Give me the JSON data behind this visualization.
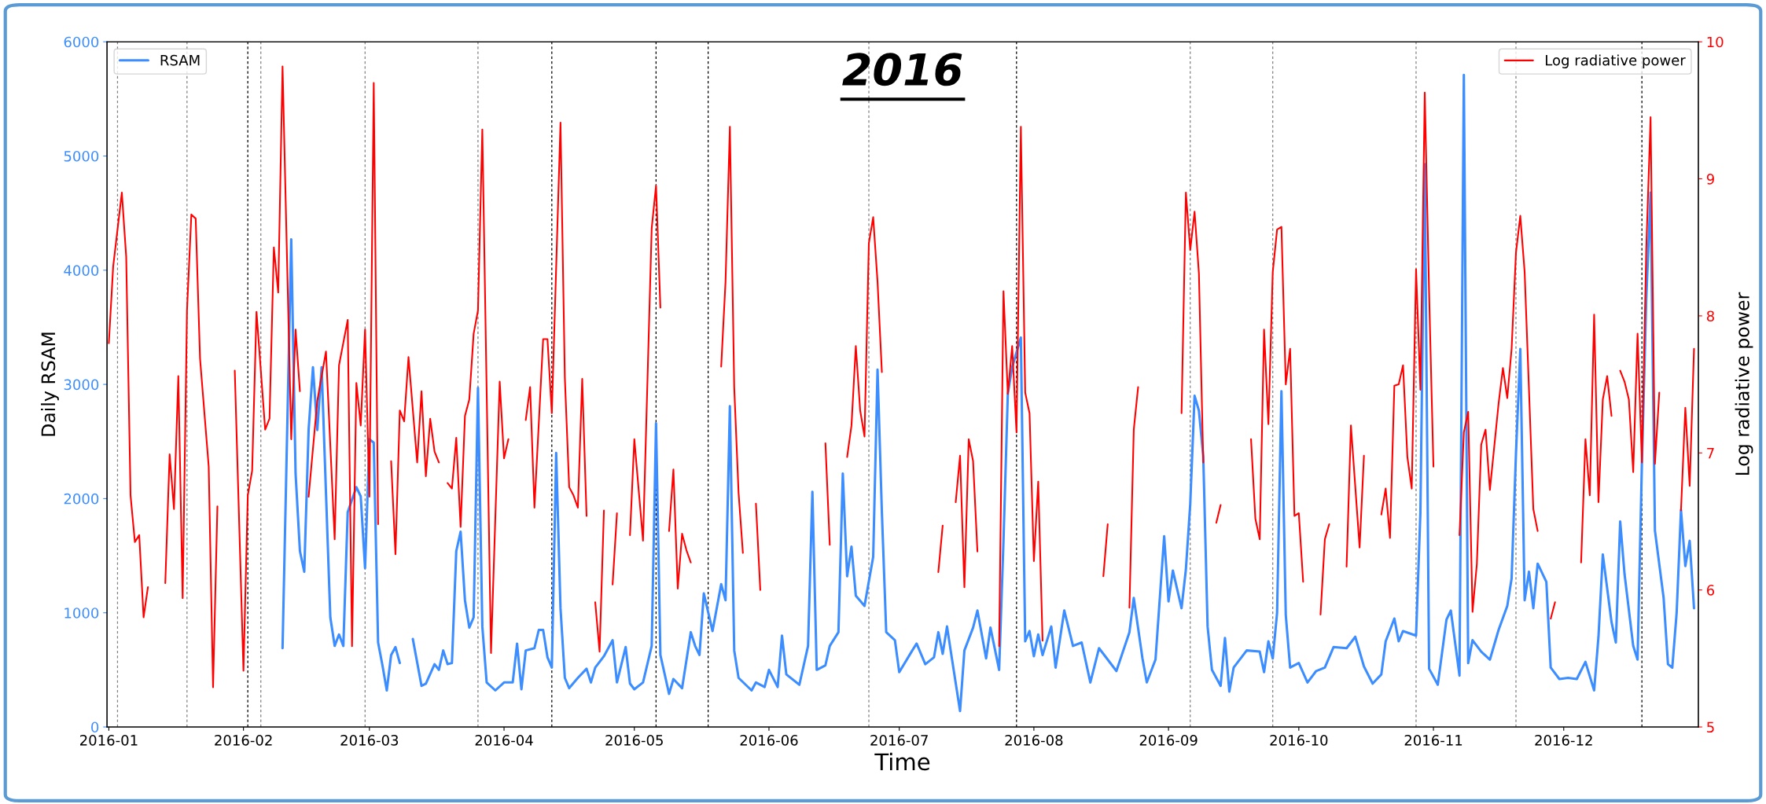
{
  "chart_data": {
    "type": "line",
    "title": "2016",
    "xlabel": "Time",
    "ylabel": "Daily RSAM",
    "y2label": "Log radiative power",
    "xlim": [
      "2015-12-31T14:00",
      "2017-01-01"
    ],
    "xticks": [
      {
        "value": "2016-01-01",
        "label": "2016-01"
      },
      {
        "value": "2016-02-01",
        "label": "2016-02"
      },
      {
        "value": "2016-03-01",
        "label": "2016-03"
      },
      {
        "value": "2016-04-01",
        "label": "2016-04"
      },
      {
        "value": "2016-05-01",
        "label": "2016-05"
      },
      {
        "value": "2016-06-01",
        "label": "2016-06"
      },
      {
        "value": "2016-07-01",
        "label": "2016-07"
      },
      {
        "value": "2016-08-01",
        "label": "2016-08"
      },
      {
        "value": "2016-09-01",
        "label": "2016-09"
      },
      {
        "value": "2016-10-01",
        "label": "2016-10"
      },
      {
        "value": "2016-11-01",
        "label": "2016-11"
      },
      {
        "value": "2016-12-01",
        "label": "2016-12"
      }
    ],
    "ylim": [
      0,
      6000
    ],
    "yticks": [
      0,
      1000,
      2000,
      3000,
      4000,
      5000,
      6000
    ],
    "y2lim": [
      5,
      10
    ],
    "y2ticks": [
      5,
      6,
      7,
      8,
      9,
      10
    ],
    "legend": [
      "top left",
      "top right"
    ],
    "grid": false,
    "line_style": "solid",
    "marker": "none",
    "series": [
      {
        "name": "RSAM",
        "color": "#3c8dff",
        "axis": "y",
        "x": [
          "2016-02-10",
          "2016-02-12",
          "2016-02-13",
          "2016-02-14",
          "2016-02-15",
          "2016-02-16",
          "2016-02-17",
          "2016-02-18",
          "2016-02-19",
          "2016-02-20",
          "2016-02-21",
          "2016-02-22",
          "2016-02-23",
          "2016-02-24",
          "2016-02-25",
          "2016-02-27",
          "2016-02-28",
          "2016-02-29",
          "2016-03-01",
          "2016-03-02",
          "2016-03-03",
          "2016-03-04",
          "2016-03-05",
          "2016-03-06",
          "2016-03-07",
          "2016-03-08",
          "2016-03-09",
          "2016-03-11",
          "2016-03-13",
          "2016-03-14",
          "2016-03-16",
          "2016-03-17",
          "2016-03-18",
          "2016-03-19",
          "2016-03-20",
          "2016-03-21",
          "2016-03-22",
          "2016-03-23",
          "2016-03-24",
          "2016-03-25",
          "2016-03-26",
          "2016-03-27",
          "2016-03-28",
          "2016-03-30",
          "2016-04-01",
          "2016-04-03",
          "2016-04-04",
          "2016-04-05",
          "2016-04-06",
          "2016-04-08",
          "2016-04-09",
          "2016-04-10",
          "2016-04-11",
          "2016-04-12",
          "2016-04-13",
          "2016-04-14",
          "2016-04-15",
          "2016-04-16",
          "2016-04-18",
          "2016-04-20",
          "2016-04-21",
          "2016-04-22",
          "2016-04-24",
          "2016-04-26",
          "2016-04-27",
          "2016-04-29",
          "2016-04-30",
          "2016-05-01",
          "2016-05-03",
          "2016-05-05",
          "2016-05-06",
          "2016-05-07",
          "2016-05-09",
          "2016-05-10",
          "2016-05-12",
          "2016-05-14",
          "2016-05-15",
          "2016-05-16",
          "2016-05-17",
          "2016-05-19",
          "2016-05-21",
          "2016-05-22",
          "2016-05-23",
          "2016-05-24",
          "2016-05-25",
          "2016-05-28",
          "2016-05-29",
          "2016-05-31",
          "2016-06-01",
          "2016-06-03",
          "2016-06-04",
          "2016-06-05",
          "2016-06-08",
          "2016-06-10",
          "2016-06-11",
          "2016-06-12",
          "2016-06-14",
          "2016-06-15",
          "2016-06-17",
          "2016-06-18",
          "2016-06-19",
          "2016-06-20",
          "2016-06-21",
          "2016-06-23",
          "2016-06-25",
          "2016-06-26",
          "2016-06-27",
          "2016-06-28",
          "2016-06-30",
          "2016-07-01",
          "2016-07-04",
          "2016-07-05",
          "2016-07-07",
          "2016-07-09",
          "2016-07-10",
          "2016-07-11",
          "2016-07-12",
          "2016-07-13",
          "2016-07-15",
          "2016-07-16",
          "2016-07-18",
          "2016-07-19",
          "2016-07-21",
          "2016-07-22",
          "2016-07-24",
          "2016-07-25",
          "2016-07-26",
          "2016-07-27",
          "2016-07-29",
          "2016-07-30",
          "2016-07-31",
          "2016-08-01",
          "2016-08-02",
          "2016-08-03",
          "2016-08-05",
          "2016-08-06",
          "2016-08-08",
          "2016-08-10",
          "2016-08-12",
          "2016-08-14",
          "2016-08-16",
          "2016-08-20",
          "2016-08-23",
          "2016-08-24",
          "2016-08-26",
          "2016-08-27",
          "2016-08-29",
          "2016-08-31",
          "2016-09-01",
          "2016-09-02",
          "2016-09-04",
          "2016-09-05",
          "2016-09-06",
          "2016-09-07",
          "2016-09-08",
          "2016-09-09",
          "2016-09-10",
          "2016-09-11",
          "2016-09-13",
          "2016-09-14",
          "2016-09-15",
          "2016-09-16",
          "2016-09-19",
          "2016-09-22",
          "2016-09-23",
          "2016-09-24",
          "2016-09-25",
          "2016-09-26",
          "2016-09-27",
          "2016-09-28",
          "2016-09-29",
          "2016-10-01",
          "2016-10-03",
          "2016-10-05",
          "2016-10-07",
          "2016-10-09",
          "2016-10-12",
          "2016-10-14",
          "2016-10-16",
          "2016-10-18",
          "2016-10-20",
          "2016-10-21",
          "2016-10-23",
          "2016-10-24",
          "2016-10-25",
          "2016-10-28",
          "2016-10-29",
          "2016-10-30",
          "2016-10-31",
          "2016-11-02",
          "2016-11-04",
          "2016-11-05",
          "2016-11-07",
          "2016-11-08",
          "2016-11-09",
          "2016-11-10",
          "2016-11-12",
          "2016-11-14",
          "2016-11-16",
          "2016-11-18",
          "2016-11-19",
          "2016-11-20",
          "2016-11-21",
          "2016-11-22",
          "2016-11-23",
          "2016-11-24",
          "2016-11-25",
          "2016-11-27",
          "2016-11-28",
          "2016-11-30",
          "2016-12-02",
          "2016-12-04",
          "2016-12-06",
          "2016-12-08",
          "2016-12-09",
          "2016-12-10",
          "2016-12-12",
          "2016-12-13",
          "2016-12-14",
          "2016-12-15",
          "2016-12-17",
          "2016-12-18",
          "2016-12-19",
          "2016-12-20",
          "2016-12-21",
          "2016-12-22",
          "2016-12-24",
          "2016-12-25",
          "2016-12-26",
          "2016-12-27",
          "2016-12-28",
          "2016-12-29",
          "2016-12-30",
          "2016-12-31"
        ],
        "values": [
          690,
          4270,
          2220,
          1540,
          1360,
          2600,
          3150,
          2600,
          3150,
          2050,
          960,
          710,
          810,
          710,
          1880,
          2100,
          2020,
          1390,
          2520,
          2490,
          740,
          540,
          320,
          630,
          700,
          560,
          null,
          770,
          360,
          380,
          550,
          500,
          670,
          550,
          560,
          1540,
          1710,
          1110,
          870,
          960,
          2970,
          880,
          390,
          320,
          390,
          390,
          730,
          330,
          670,
          690,
          850,
          850,
          610,
          520,
          2400,
          1040,
          430,
          340,
          430,
          510,
          390,
          520,
          620,
          760,
          390,
          700,
          380,
          330,
          390,
          710,
          2660,
          630,
          290,
          420,
          340,
          830,
          710,
          630,
          1170,
          840,
          1250,
          1110,
          2810,
          670,
          430,
          320,
          390,
          350,
          500,
          350,
          800,
          460,
          370,
          710,
          2060,
          500,
          540,
          710,
          830,
          2220,
          1320,
          1580,
          1150,
          1060,
          1490,
          3130,
          1880,
          830,
          760,
          480,
          670,
          730,
          550,
          610,
          830,
          640,
          880,
          630,
          140,
          670,
          870,
          1020,
          600,
          870,
          500,
          1630,
          2920,
          3150,
          3410,
          750,
          840,
          620,
          810,
          630,
          880,
          520,
          1020,
          710,
          740,
          390,
          690,
          490,
          830,
          1130,
          600,
          390,
          590,
          1670,
          1100,
          1370,
          1040,
          1380,
          1950,
          2900,
          2770,
          2370,
          880,
          500,
          360,
          780,
          310,
          520,
          670,
          660,
          480,
          750,
          600,
          1000,
          2940,
          980,
          520,
          560,
          390,
          490,
          520,
          700,
          690,
          790,
          530,
          380,
          460,
          750,
          950,
          750,
          840,
          800,
          1880,
          4930,
          510,
          370,
          940,
          1020,
          450,
          5710,
          560,
          760,
          660,
          590,
          850,
          1060,
          1300,
          2390,
          3310,
          1110,
          1360,
          1040,
          1430,
          1270,
          520,
          420,
          430,
          420,
          570,
          320,
          790,
          1510,
          920,
          740,
          1800,
          1340,
          710,
          590,
          2310,
          3740,
          4680,
          1720,
          1130,
          550,
          520,
          1000,
          1900,
          1410,
          1630,
          1040
        ]
      },
      {
        "name": "Log radiative power",
        "color": "#ff0000",
        "axis": "y2",
        "x": [
          "2016-01-01",
          "2016-01-02",
          "2016-01-04",
          "2016-01-05",
          "2016-01-06",
          "2016-01-07",
          "2016-01-08",
          "2016-01-09",
          "2016-01-10",
          "2016-01-11",
          "2016-01-14",
          "2016-01-15",
          "2016-01-16",
          "2016-01-17",
          "2016-01-18",
          "2016-01-19",
          "2016-01-20",
          "2016-01-21",
          "2016-01-22",
          "2016-01-24",
          "2016-01-25",
          "2016-01-26",
          "2016-01-28",
          "2016-01-30",
          "2016-02-01",
          "2016-02-02",
          "2016-02-03",
          "2016-02-04",
          "2016-02-06",
          "2016-02-07",
          "2016-02-08",
          "2016-02-09",
          "2016-02-10",
          "2016-02-12",
          "2016-02-13",
          "2016-02-14",
          "2016-02-15",
          "2016-02-16",
          "2016-02-18",
          "2016-02-20",
          "2016-02-22",
          "2016-02-23",
          "2016-02-25",
          "2016-02-26",
          "2016-02-27",
          "2016-02-28",
          "2016-02-29",
          "2016-03-01",
          "2016-03-02",
          "2016-03-03",
          "2016-03-04",
          "2016-03-06",
          "2016-03-07",
          "2016-03-08",
          "2016-03-09",
          "2016-03-10",
          "2016-03-12",
          "2016-03-13",
          "2016-03-14",
          "2016-03-15",
          "2016-03-16",
          "2016-03-17",
          "2016-03-18",
          "2016-03-19",
          "2016-03-20",
          "2016-03-21",
          "2016-03-22",
          "2016-03-23",
          "2016-03-24",
          "2016-03-25",
          "2016-03-26",
          "2016-03-27",
          "2016-03-29",
          "2016-03-31",
          "2016-04-01",
          "2016-04-02",
          "2016-04-04",
          "2016-04-06",
          "2016-04-07",
          "2016-04-08",
          "2016-04-10",
          "2016-04-11",
          "2016-04-12",
          "2016-04-14",
          "2016-04-15",
          "2016-04-16",
          "2016-04-17",
          "2016-04-18",
          "2016-04-19",
          "2016-04-20",
          "2016-04-21",
          "2016-04-22",
          "2016-04-23",
          "2016-04-24",
          "2016-04-25",
          "2016-04-26",
          "2016-04-27",
          "2016-04-28",
          "2016-04-30",
          "2016-05-01",
          "2016-05-03",
          "2016-05-05",
          "2016-05-06",
          "2016-05-07",
          "2016-05-08",
          "2016-05-09",
          "2016-05-10",
          "2016-05-11",
          "2016-05-12",
          "2016-05-13",
          "2016-05-14",
          "2016-05-17",
          "2016-05-21",
          "2016-05-22",
          "2016-05-23",
          "2016-05-24",
          "2016-05-25",
          "2016-05-26",
          "2016-05-27",
          "2016-05-29",
          "2016-05-30",
          "2016-06-05",
          "2016-06-14",
          "2016-06-15",
          "2016-06-17",
          "2016-06-19",
          "2016-06-20",
          "2016-06-21",
          "2016-06-22",
          "2016-06-23",
          "2016-06-24",
          "2016-06-25",
          "2016-06-26",
          "2016-06-27",
          "2016-07-03",
          "2016-07-10",
          "2016-07-11",
          "2016-07-12",
          "2016-07-14",
          "2016-07-15",
          "2016-07-16",
          "2016-07-17",
          "2016-07-18",
          "2016-07-19",
          "2016-07-21",
          "2016-07-24",
          "2016-07-25",
          "2016-07-26",
          "2016-07-27",
          "2016-07-28",
          "2016-07-29",
          "2016-07-30",
          "2016-07-31",
          "2016-08-01",
          "2016-08-02",
          "2016-08-03",
          "2016-08-10",
          "2016-08-17",
          "2016-08-18",
          "2016-08-20",
          "2016-08-23",
          "2016-08-24",
          "2016-08-25",
          "2016-09-01",
          "2016-09-04",
          "2016-09-05",
          "2016-09-06",
          "2016-09-07",
          "2016-09-08",
          "2016-09-09",
          "2016-09-10",
          "2016-09-12",
          "2016-09-13",
          "2016-09-16",
          "2016-09-20",
          "2016-09-21",
          "2016-09-22",
          "2016-09-23",
          "2016-09-24",
          "2016-09-25",
          "2016-09-26",
          "2016-09-27",
          "2016-09-28",
          "2016-09-29",
          "2016-09-30",
          "2016-10-01",
          "2016-10-02",
          "2016-10-04",
          "2016-10-06",
          "2016-10-07",
          "2016-10-08",
          "2016-10-10",
          "2016-10-12",
          "2016-10-13",
          "2016-10-15",
          "2016-10-16",
          "2016-10-18",
          "2016-10-20",
          "2016-10-21",
          "2016-10-22",
          "2016-10-23",
          "2016-10-24",
          "2016-10-25",
          "2016-10-26",
          "2016-10-27",
          "2016-10-28",
          "2016-10-29",
          "2016-10-30",
          "2016-10-31",
          "2016-11-01",
          "2016-11-04",
          "2016-11-07",
          "2016-11-08",
          "2016-11-09",
          "2016-11-10",
          "2016-11-11",
          "2016-11-12",
          "2016-11-13",
          "2016-11-14",
          "2016-11-16",
          "2016-11-17",
          "2016-11-18",
          "2016-11-19",
          "2016-11-20",
          "2016-11-21",
          "2016-11-22",
          "2016-11-23",
          "2016-11-24",
          "2016-11-25",
          "2016-11-26",
          "2016-11-28",
          "2016-11-29",
          "2016-12-02",
          "2016-12-05",
          "2016-12-06",
          "2016-12-07",
          "2016-12-08",
          "2016-12-09",
          "2016-12-10",
          "2016-12-11",
          "2016-12-12",
          "2016-12-13",
          "2016-12-14",
          "2016-12-15",
          "2016-12-16",
          "2016-12-17",
          "2016-12-18",
          "2016-12-19",
          "2016-12-20",
          "2016-12-21",
          "2016-12-22",
          "2016-12-23",
          "2016-12-25",
          "2016-12-28",
          "2016-12-29",
          "2016-12-30",
          "2016-12-31"
        ],
        "values": [
          7.8,
          8.36,
          8.9,
          8.43,
          6.69,
          6.35,
          6.4,
          5.8,
          6.02,
          null,
          6.05,
          6.99,
          6.59,
          7.56,
          5.94,
          8.04,
          8.74,
          8.71,
          7.69,
          6.9,
          5.29,
          6.61,
          null,
          7.6,
          5.41,
          6.69,
          6.87,
          8.03,
          7.17,
          7.25,
          8.5,
          8.17,
          9.82,
          7.1,
          7.9,
          7.45,
          null,
          6.68,
          7.38,
          7.74,
          6.37,
          7.64,
          7.97,
          5.59,
          7.51,
          7.2,
          7.9,
          6.68,
          9.7,
          6.48,
          null,
          6.94,
          6.26,
          7.31,
          7.23,
          7.7,
          6.93,
          7.45,
          6.83,
          7.25,
          7.01,
          6.93,
          null,
          6.78,
          6.74,
          7.11,
          6.46,
          7.27,
          7.39,
          7.87,
          8.04,
          9.36,
          5.54,
          7.52,
          6.96,
          7.1,
          null,
          7.24,
          7.48,
          6.6,
          7.83,
          7.83,
          7.29,
          9.41,
          7.55,
          6.75,
          6.69,
          6.6,
          7.54,
          6.54,
          null,
          5.91,
          5.55,
          6.58,
          null,
          6.04,
          6.56,
          null,
          6.4,
          7.1,
          6.36,
          8.64,
          8.95,
          8.06,
          null,
          6.43,
          6.88,
          6.01,
          6.41,
          6.29,
          6.2,
          null,
          7.63,
          8.25,
          9.38,
          7.48,
          6.71,
          6.27,
          null,
          6.63,
          6.0,
          null,
          7.07,
          6.33,
          null,
          6.97,
          7.2,
          7.78,
          7.31,
          7.12,
          8.53,
          8.72,
          8.25,
          7.59,
          null,
          6.13,
          6.47,
          null,
          6.64,
          6.98,
          6.02,
          7.1,
          6.94,
          6.28,
          null,
          5.59,
          8.18,
          7.43,
          7.78,
          7.15,
          9.38,
          7.44,
          7.29,
          6.21,
          6.79,
          5.63,
          null,
          6.1,
          6.48,
          null,
          5.87,
          7.17,
          7.48,
          null,
          7.29,
          8.9,
          8.48,
          8.76,
          8.31,
          6.93,
          null,
          6.49,
          6.62,
          null,
          7.1,
          6.52,
          6.37,
          7.9,
          7.21,
          8.32,
          8.63,
          8.65,
          7.5,
          7.76,
          6.54,
          6.56,
          6.06,
          null,
          5.82,
          6.37,
          6.48,
          null,
          6.17,
          7.2,
          6.31,
          6.98,
          null,
          6.55,
          6.74,
          6.38,
          7.49,
          7.5,
          7.64,
          6.97,
          6.74,
          8.34,
          7.46,
          9.63,
          8.17,
          6.9,
          null,
          6.4,
          7.15,
          7.3,
          5.84,
          6.19,
          7.06,
          7.17,
          6.73,
          7.36,
          7.62,
          7.4,
          7.76,
          8.46,
          8.73,
          8.32,
          7.46,
          6.59,
          6.43,
          null,
          5.79,
          5.91,
          null,
          6.2,
          7.1,
          6.69,
          8.01,
          6.64,
          7.39,
          7.56,
          7.27,
          null,
          7.6,
          7.52,
          7.39,
          6.86,
          7.87,
          6.93,
          8.48,
          9.45,
          6.92,
          7.44,
          null,
          6.58,
          7.33,
          6.76,
          7.76
        ]
      }
    ],
    "ref_lines": [
      {
        "axis": "x",
        "value": "2016-01-03",
        "label": null,
        "color": "#808080",
        "line_style": "dashed"
      },
      {
        "axis": "x",
        "value": "2016-01-19",
        "label": null,
        "color": "#808080",
        "line_style": "dashed"
      },
      {
        "axis": "x",
        "value": "2016-02-02",
        "label": null,
        "color": "#000000",
        "line_style": "dashed"
      },
      {
        "axis": "x",
        "value": "2016-02-05",
        "label": null,
        "color": "#808080",
        "line_style": "dashed"
      },
      {
        "axis": "x",
        "value": "2016-02-29",
        "label": null,
        "color": "#808080",
        "line_style": "dashed"
      },
      {
        "axis": "x",
        "value": "2016-03-26",
        "label": null,
        "color": "#808080",
        "line_style": "dashed"
      },
      {
        "axis": "x",
        "value": "2016-04-12",
        "label": null,
        "color": "#000000",
        "line_style": "dashed"
      },
      {
        "axis": "x",
        "value": "2016-05-06",
        "label": null,
        "color": "#000000",
        "line_style": "dashed"
      },
      {
        "axis": "x",
        "value": "2016-05-18",
        "label": null,
        "color": "#000000",
        "line_style": "dashed"
      },
      {
        "axis": "x",
        "value": "2016-06-24",
        "label": null,
        "color": "#808080",
        "line_style": "dashed"
      },
      {
        "axis": "x",
        "value": "2016-07-28",
        "label": null,
        "color": "#000000",
        "line_style": "dashed"
      },
      {
        "axis": "x",
        "value": "2016-09-06",
        "label": null,
        "color": "#808080",
        "line_style": "dashed"
      },
      {
        "axis": "x",
        "value": "2016-09-25",
        "label": null,
        "color": "#808080",
        "line_style": "dashed"
      },
      {
        "axis": "x",
        "value": "2016-10-28",
        "label": null,
        "color": "#808080",
        "line_style": "dashed"
      },
      {
        "axis": "x",
        "value": "2016-11-20",
        "label": null,
        "color": "#808080",
        "line_style": "dashed"
      },
      {
        "axis": "x",
        "value": "2016-12-19",
        "label": null,
        "color": "#000000",
        "line_style": "dashed"
      }
    ]
  }
}
